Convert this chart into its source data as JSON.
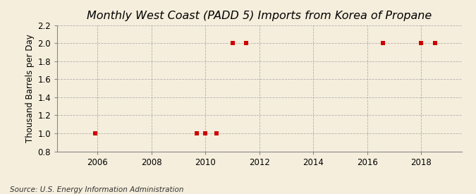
{
  "title": "Monthly West Coast (PADD 5) Imports from Korea of Propane",
  "ylabel": "Thousand Barrels per Day",
  "source": "Source: U.S. Energy Information Administration",
  "xlim": [
    2004.5,
    2019.5
  ],
  "ylim": [
    0.8,
    2.2
  ],
  "yticks": [
    0.8,
    1.0,
    1.2,
    1.4,
    1.6,
    1.8,
    2.0,
    2.2
  ],
  "xticks": [
    2006,
    2008,
    2010,
    2012,
    2014,
    2016,
    2018
  ],
  "data_x": [
    2005.917,
    2009.667,
    2010.0,
    2010.417,
    2011.0,
    2011.5,
    2016.583,
    2018.0,
    2018.5
  ],
  "data_y": [
    1.0,
    1.0,
    1.0,
    1.0,
    2.0,
    2.0,
    2.0,
    2.0,
    2.0
  ],
  "marker_color": "#cc0000",
  "marker_style": "s",
  "marker_size": 25,
  "background_color": "#f5eedc",
  "grid_color": "#aaaaaa",
  "title_fontsize": 11.5,
  "label_fontsize": 8.5,
  "tick_fontsize": 8.5,
  "source_fontsize": 7.5
}
